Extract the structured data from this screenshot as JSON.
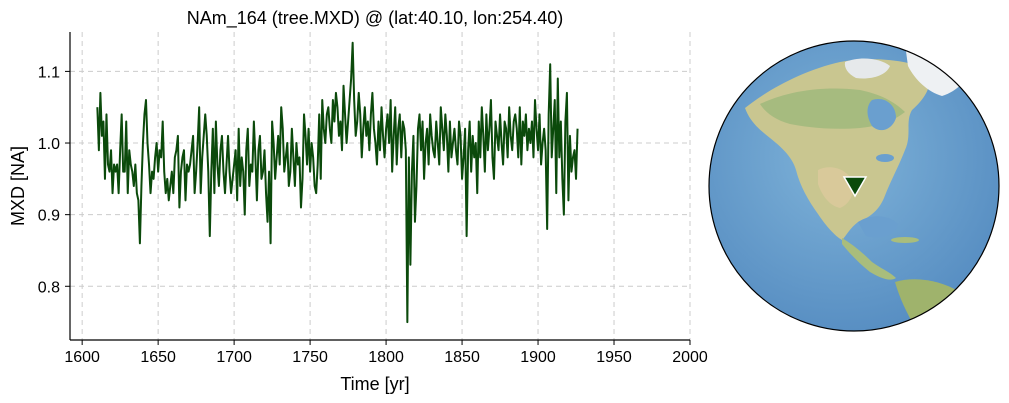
{
  "chart_data": {
    "type": "line",
    "title": "NAm_164 (tree.MXD) @ (lat:40.10, lon:254.40)",
    "xlabel": "Time [yr]",
    "ylabel": "MXD [NA]",
    "xlim": [
      1592,
      2000
    ],
    "ylim": [
      0.725,
      1.155
    ],
    "xticks": [
      1600,
      1650,
      1700,
      1750,
      1800,
      1850,
      1900,
      1950,
      2000
    ],
    "xtick_labels": [
      "1600",
      "1650",
      "1700",
      "1750",
      "1800",
      "1850",
      "1900",
      "1950",
      "2000"
    ],
    "yticks": [
      0.8,
      0.9,
      1.0,
      1.1
    ],
    "ytick_labels": [
      "0.8",
      "0.9",
      "1.0",
      "1.1"
    ],
    "grid": true,
    "grid_style": "dashed",
    "series": [
      {
        "color": "#0b4a0b",
        "x_start": 1610,
        "x_step": 1,
        "values": [
          1.05,
          0.99,
          1.07,
          1.01,
          1.03,
          0.95,
          1.04,
          0.97,
          0.96,
          0.99,
          0.93,
          0.97,
          0.96,
          0.97,
          0.93,
          0.99,
          1.04,
          0.96,
          0.96,
          1.03,
          0.93,
          0.99,
          0.97,
          0.96,
          0.94,
          0.97,
          0.93,
          0.92,
          0.86,
          0.94,
          1.0,
          1.04,
          1.06,
          1.0,
          0.97,
          0.93,
          0.96,
          0.95,
          0.98,
          1.0,
          0.96,
          0.99,
          0.98,
          1.03,
          0.96,
          0.93,
          0.95,
          0.92,
          0.94,
          0.96,
          0.93,
          0.98,
          0.99,
          1.01,
          0.91,
          0.96,
          0.98,
          0.99,
          0.92,
          0.97,
          0.96,
          0.97,
          0.99,
          1.01,
          0.93,
          0.96,
          1.0,
          1.05,
          0.93,
          0.98,
          1.01,
          1.04,
          1.01,
          0.96,
          0.87,
          0.96,
          1.02,
          0.93,
          1.03,
          0.97,
          0.94,
          0.99,
          1.01,
          0.96,
          0.93,
          0.97,
          1.01,
          0.96,
          0.93,
          0.95,
          0.97,
          0.99,
          0.92,
          1.02,
          0.94,
          0.98,
          0.96,
          0.9,
          0.99,
          1.02,
          0.94,
          0.97,
          0.96,
          1.03,
          0.98,
          0.92,
          0.99,
          1.01,
          0.95,
          0.96,
          0.99,
          0.93,
          0.89,
          0.96,
          0.86,
          1.03,
          1.0,
          0.95,
          0.98,
          1.01,
          0.97,
          1.05,
          1.02,
          0.96,
          0.98,
          1.0,
          0.94,
          0.96,
          1.02,
          0.98,
          0.94,
          1.0,
          0.97,
          0.98,
          0.91,
          0.95,
          1.04,
          1.01,
          0.97,
          1.02,
          0.96,
          1.0,
          0.98,
          0.94,
          0.93,
          0.97,
          1.04,
          0.95,
          1.06,
          1.02,
          1.0,
          1.04,
          1.05,
          1.02,
          1.0,
          1.06,
          1.03,
          1.07,
          1.05,
          1.01,
          1.03,
          0.99,
          1.08,
          1.04,
          1.0,
          1.03,
          1.06,
          1.09,
          1.14,
          1.06,
          1.01,
          1.03,
          1.07,
          1.04,
          0.98,
          1.02,
          1.05,
          1.01,
          1.03,
          0.99,
          1.04,
          1.07,
          1.02,
          1.0,
          0.97,
          1.03,
          0.99,
          1.05,
          1.01,
          0.98,
          1.02,
          1.04,
          1.0,
          1.06,
          0.96,
          1.01,
          1.05,
          0.97,
          1.02,
          1.04,
          0.98,
          1.03,
          1.02,
          0.99,
          0.75,
          0.98,
          0.83,
          0.96,
          1.01,
          0.89,
          0.94,
          1.02,
          1.04,
          0.99,
          1.03,
          0.95,
          1.0,
          1.02,
          0.97,
          1.04,
          1.01,
          0.99,
          0.98,
          1.03,
          1.0,
          0.97,
          1.05,
          1.02,
          0.99,
          1.04,
          1.01,
          0.96,
          1.03,
          0.98,
          1.0,
          1.02,
          0.99,
          0.97,
          1.03,
          1.01,
          0.95,
          0.98,
          1.02,
          0.87,
          0.99,
          1.03,
          0.96,
          1.01,
          0.98,
          1.0,
          0.93,
          1.03,
          0.98,
          1.05,
          1.01,
          0.96,
          1.04,
          0.99,
          1.02,
          1.06,
          0.98,
          0.95,
          1.03,
          1.01,
          0.99,
          1.04,
          1.0,
          0.97,
          1.03,
          1.02,
          0.98,
          1.05,
          1.01,
          0.99,
          1.03,
          1.04,
          1.02,
          0.98,
          1.05,
          0.97,
          1.03,
          1.01,
          1.04,
          0.99,
          1.02,
          1.0,
          1.03,
          0.98,
          1.06,
          1.02,
          0.99,
          1.04,
          0.97,
          1.0,
          1.02,
          0.99,
          0.88,
          1.04,
          1.11,
          0.98,
          1.02,
          1.06,
          0.93,
          1.09,
          0.98,
          1.03,
          0.95,
          0.9,
          1.03,
          1.07,
          0.92,
          1.01,
          0.96,
          0.98,
          0.99,
          0.95,
          1.02
        ]
      }
    ]
  },
  "map": {
    "type": "orthographic-globe",
    "marker": {
      "lat": 40.1,
      "lon": 254.4,
      "shape": "inverted-triangle",
      "color": "#0b4a0b"
    }
  }
}
